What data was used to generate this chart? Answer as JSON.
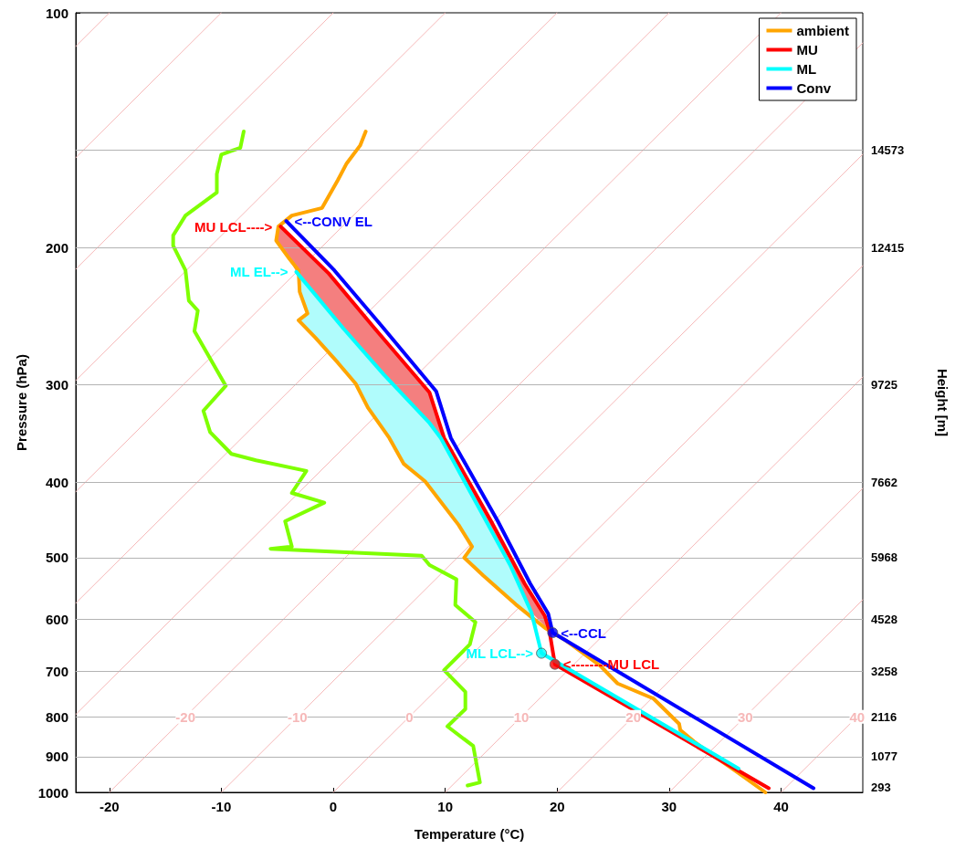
{
  "chart_data": {
    "type": "line",
    "xlabel": "Temperature (°C)",
    "ylabel": "Pressure (hPa)",
    "xlim": [
      -23,
      47.3
    ],
    "xticks": [
      -20,
      -10,
      0,
      10,
      20,
      30,
      40
    ],
    "ylim": [
      1000,
      100
    ],
    "yticks": [
      100,
      200,
      300,
      400,
      500,
      600,
      700,
      800,
      900,
      1000
    ],
    "log": "y",
    "legend": "top right",
    "ref_lines": [
      {
        "axis": "y",
        "value": 150,
        "color": "#b3b3b3"
      },
      {
        "axis": "y",
        "value": 200,
        "color": "#b3b3b3"
      },
      {
        "axis": "y",
        "value": 300,
        "color": "#b3b3b3"
      },
      {
        "axis": "y",
        "value": 400,
        "color": "#b3b3b3"
      },
      {
        "axis": "y",
        "value": 500,
        "color": "#b3b3b3"
      },
      {
        "axis": "y",
        "value": 600,
        "color": "#b3b3b3"
      },
      {
        "axis": "y",
        "value": 700,
        "color": "#b3b3b3"
      },
      {
        "axis": "y",
        "value": 800,
        "color": "#b3b3b3"
      },
      {
        "axis": "y",
        "value": 900,
        "color": "#b3b3b3"
      }
    ],
    "series": [
      {
        "color": "#f6b8b8",
        "x": [
          -23,
          -20
        ],
        "values": [
          110.4,
          100
        ]
      },
      {
        "color": "#f6b8b8",
        "x": [
          -23,
          -10
        ],
        "values": [
          153.4,
          100
        ]
      },
      {
        "color": "#f6b8b8",
        "x": [
          -23,
          0
        ],
        "values": [
          213.2,
          100
        ]
      },
      {
        "color": "#f6b8b8",
        "x": [
          -23,
          10
        ],
        "values": [
          296.2,
          100
        ]
      },
      {
        "color": "#f6b8b8",
        "x": [
          -23,
          20
        ],
        "values": [
          411.5,
          100
        ]
      },
      {
        "color": "#f6b8b8",
        "x": [
          -23,
          30
        ],
        "values": [
          571.8,
          100
        ]
      },
      {
        "color": "#f6b8b8",
        "x": [
          -23,
          40
        ],
        "values": [
          794.3,
          100
        ]
      },
      {
        "color": "#f6b8b8",
        "x": [
          -20,
          47.3
        ],
        "values": [
          1000,
          109.3
        ]
      },
      {
        "color": "#f6b8b8",
        "x": [
          -10,
          47.3
        ],
        "values": [
          1000,
          151.9
        ]
      },
      {
        "color": "#f6b8b8",
        "x": [
          0,
          47.3
        ],
        "values": [
          1000,
          211.1
        ]
      },
      {
        "color": "#f6b8b8",
        "x": [
          10,
          47.3
        ],
        "values": [
          1000,
          293.3
        ]
      },
      {
        "color": "#f6b8b8",
        "x": [
          20,
          47.3
        ],
        "values": [
          1000,
          407.4
        ]
      },
      {
        "color": "#f6b8b8",
        "x": [
          30,
          47.3
        ],
        "values": [
          1000,
          566.2
        ]
      },
      {
        "color": "#f6b8b8",
        "x": [
          40,
          47.3
        ],
        "values": [
          1000,
          786.6
        ]
      },
      {
        "type": "area",
        "color": "#f47f7f",
        "x": [
          -4.7,
          -0.4,
          3.7,
          8.6,
          9.9,
          14.1,
          17.1,
          18.9,
          19.3,
          17.7,
          15.8,
          13.1,
          9.6,
          8.6,
          4.5,
          0.9,
          -3.3,
          -3.9,
          -5.1,
          -4.9
        ],
        "values": [
          188,
          216,
          254,
          307,
          351,
          449,
          540,
          594,
          620,
          588,
          511,
          434,
          351,
          336,
          291,
          254,
          215,
          207,
          196,
          188
        ]
      },
      {
        "type": "area",
        "color": "#b0fcfc",
        "x": [
          -3.3,
          0.9,
          4.5,
          8.6,
          9.6,
          13.1,
          15.8,
          17.7,
          18.3,
          16.3,
          13.4,
          11.7,
          12.4,
          11.2,
          8.2,
          6.3,
          5.0,
          3.1,
          2.0,
          0.4,
          -1.6,
          -3.1,
          -2.3,
          -3.0,
          -3.1
        ],
        "values": [
          215,
          254,
          291,
          336,
          351,
          434,
          511,
          588,
          615,
          574,
          527,
          500,
          484,
          454,
          399,
          379,
          351,
          321,
          299,
          281,
          261,
          248,
          243,
          228,
          214
        ]
      },
      {
        "color": "#7fff00",
        "x": [
          -8.0,
          -8.3,
          -10.0,
          -10.4,
          -10.4,
          -13.2,
          -14.3,
          -14.3,
          -13.2,
          -12.9,
          -12.1,
          -12.4,
          -9.6,
          -11.6,
          -11.0,
          -9.1,
          -6.9,
          -2.4,
          -3.7,
          -0.8,
          -4.3,
          -3.7,
          -5.6,
          7.9,
          8.6,
          11.0,
          10.9,
          12.7,
          12.2,
          9.9,
          11.8,
          11.8,
          10.2,
          12.5,
          13.1,
          12.0
        ],
        "values": [
          142,
          149,
          152,
          161,
          170,
          182,
          193,
          199,
          214,
          234,
          241,
          256,
          301,
          324,
          345,
          368,
          375,
          387,
          413,
          425,
          449,
          484,
          487,
          497,
          511,
          533,
          575,
          605,
          646,
          697,
          743,
          782,
          823,
          872,
          971,
          980
        ]
      },
      {
        "name": "ambient",
        "color": "#ffa500",
        "x": [
          2.9,
          2.4,
          1.2,
          0.4,
          -1.0,
          -3.7,
          -4.9,
          -5.1,
          -3.9,
          -3.1,
          -3.0,
          -2.3,
          -3.1,
          -1.6,
          0.4,
          2.0,
          3.1,
          5.0,
          6.3,
          8.2,
          11.2,
          12.4,
          11.7,
          13.4,
          16.3,
          18.9,
          20.8,
          23.8,
          25.4,
          28.6,
          30.9,
          31.0,
          32.2,
          33.5,
          36.0,
          38.6
        ],
        "values": [
          142,
          148,
          156,
          164,
          178,
          182,
          188,
          196,
          207,
          214,
          228,
          243,
          248,
          261,
          281,
          299,
          321,
          351,
          379,
          399,
          454,
          484,
          500,
          527,
          574,
          615,
          639,
          687,
          725,
          758,
          817,
          832,
          860,
          888,
          940,
          1000
        ]
      },
      {
        "name": "MU",
        "color": "#ff0000",
        "x": [
          -4.7,
          -0.4,
          3.7,
          8.6,
          9.9,
          14.1,
          17.1,
          18.9,
          19.3,
          19.8,
          38.9
        ],
        "values": [
          188,
          216,
          254,
          307,
          351,
          449,
          540,
          594,
          620,
          685,
          988
        ]
      },
      {
        "name": "ML",
        "color": "#00ffff",
        "x": [
          -3.3,
          0.9,
          4.5,
          8.6,
          9.6,
          13.1,
          15.8,
          17.7,
          18.6,
          36.2
        ],
        "values": [
          215,
          254,
          291,
          336,
          351,
          434,
          511,
          588,
          663,
          932
        ]
      },
      {
        "name": "Conv",
        "color": "#0000ff",
        "x": [
          -4.2,
          0.1,
          4.3,
          9.2,
          10.5,
          14.7,
          17.6,
          19.2,
          19.6,
          42.9
        ],
        "values": [
          185,
          214,
          252,
          306,
          351,
          449,
          540,
          590,
          624,
          988
        ]
      },
      {
        "type": "scatter",
        "color": "#0000ff",
        "x": [
          19.6
        ],
        "values": [
          624
        ]
      },
      {
        "type": "scatter",
        "color": "#00ffff",
        "x": [
          18.6
        ],
        "values": [
          663
        ]
      },
      {
        "type": "scatter",
        "color": "#ff0000",
        "x": [
          19.8
        ],
        "values": [
          685
        ]
      }
    ],
    "annotations": [
      {
        "text": "MU LCL---->",
        "x": -4.7,
        "y": 188
      },
      {
        "text": "<--CONV EL",
        "x": -4.2,
        "y": 185
      },
      {
        "text": "ML EL-->",
        "x": -3.3,
        "y": 215
      },
      {
        "text": "<--CCL",
        "x": 19.6,
        "y": 624
      },
      {
        "text": "ML LCL-->",
        "x": 18.6,
        "y": 663
      },
      {
        "text": "<--------MU LCL",
        "x": 19.8,
        "y": 685
      },
      {
        "text": "-20",
        "x": -13.2,
        "y": 800
      },
      {
        "text": "-10",
        "x": -3.2,
        "y": 800
      },
      {
        "text": "0",
        "x": 6.8,
        "y": 800
      },
      {
        "text": "10",
        "x": 16.8,
        "y": 800
      },
      {
        "text": "20",
        "x": 26.8,
        "y": 800
      },
      {
        "text": "30",
        "x": 36.8,
        "y": 800
      },
      {
        "text": "40",
        "x": 46.8,
        "y": 800
      },
      {
        "text": "14573",
        "x": 47.3,
        "y": 150
      },
      {
        "text": "12415",
        "x": 47.3,
        "y": 200
      },
      {
        "text": "9725",
        "x": 47.3,
        "y": 300
      },
      {
        "text": "7662",
        "x": 47.3,
        "y": 400
      },
      {
        "text": "5968",
        "x": 47.3,
        "y": 500
      },
      {
        "text": "4528",
        "x": 47.3,
        "y": 600
      },
      {
        "text": "3258",
        "x": 47.3,
        "y": 700
      },
      {
        "text": "2116",
        "x": 47.3,
        "y": 800
      },
      {
        "text": "1077",
        "x": 47.3,
        "y": 900
      },
      "293",
      "Height [m]"
    ]
  }
}
